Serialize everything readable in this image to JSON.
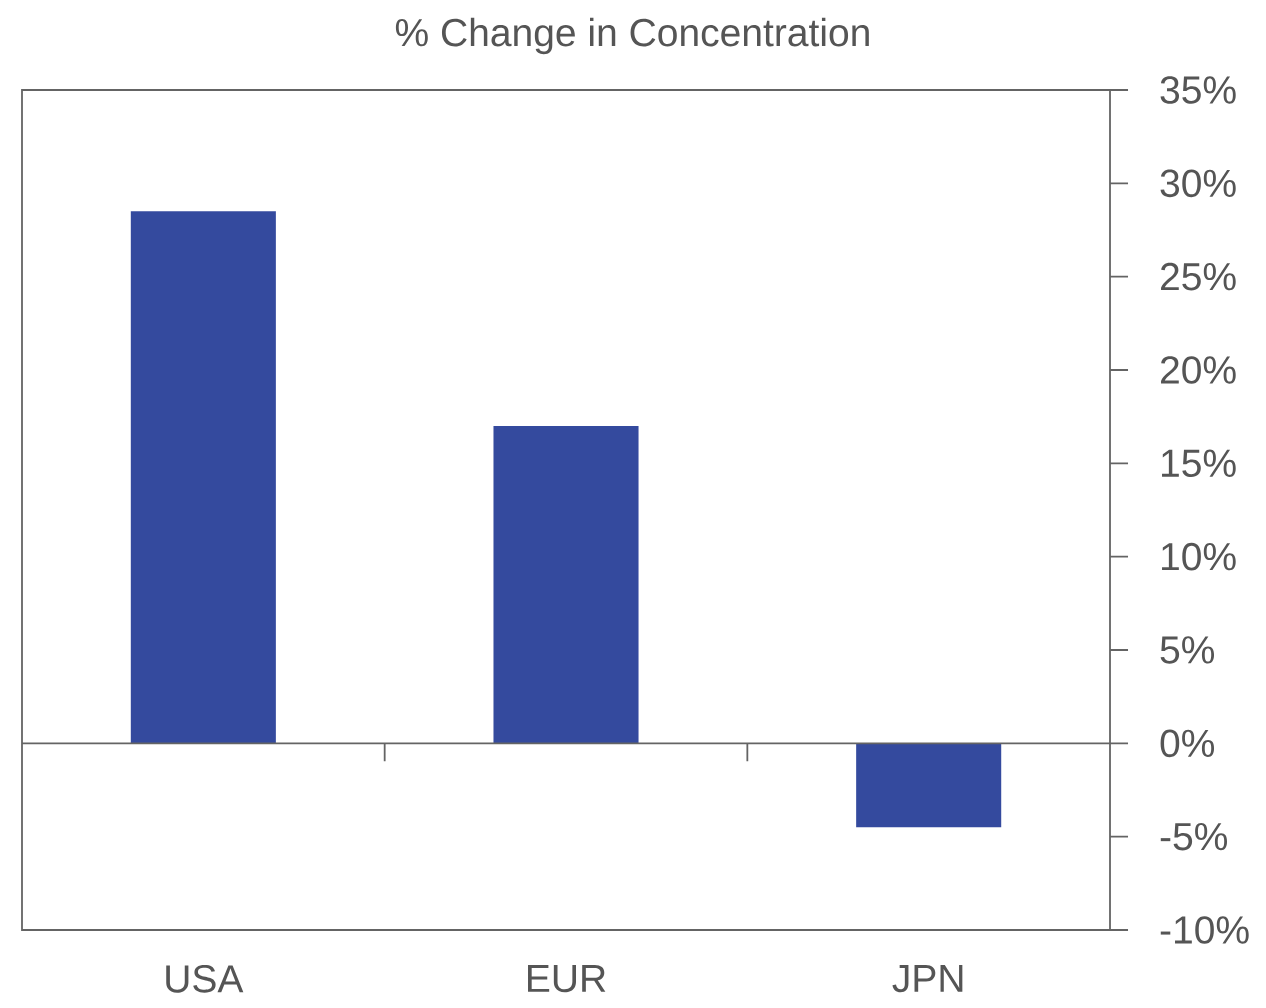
{
  "chart_data": {
    "type": "bar",
    "title": "% Change in Concentration",
    "categories": [
      "USA",
      "EUR",
      "JPN"
    ],
    "values": [
      28.5,
      17,
      -4.5
    ],
    "color": "#344a9e",
    "ylim": [
      -10,
      35
    ],
    "yticks": [
      {
        "value": -10,
        "label": "-10%"
      },
      {
        "value": -5,
        "label": "-5%"
      },
      {
        "value": 0,
        "label": "0%"
      },
      {
        "value": 5,
        "label": "5%"
      },
      {
        "value": 10,
        "label": "10%"
      },
      {
        "value": 15,
        "label": "15%"
      },
      {
        "value": 20,
        "label": "20%"
      },
      {
        "value": 25,
        "label": "25%"
      },
      {
        "value": 30,
        "label": "30%"
      },
      {
        "value": 35,
        "label": "35%"
      }
    ]
  }
}
